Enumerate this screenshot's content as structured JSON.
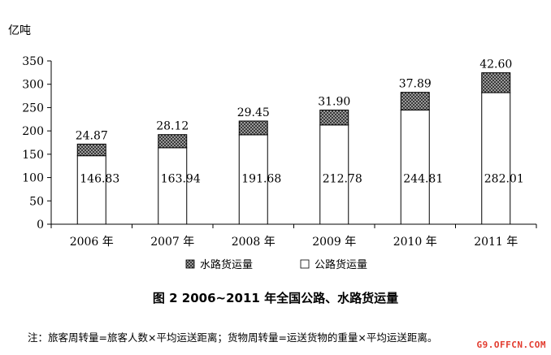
{
  "chart_data": {
    "type": "bar",
    "stacked": true,
    "ylabel": "亿吨",
    "ylim": [
      0,
      350
    ],
    "yticks": [
      0,
      50,
      100,
      150,
      200,
      250,
      300,
      350
    ],
    "grid": false,
    "legend_position": "bottom",
    "categories": [
      "2006 年",
      "2007 年",
      "2008 年",
      "2009 年",
      "2010 年",
      "2011 年"
    ],
    "series": [
      {
        "name": "公路货运量",
        "values": [
          146.83,
          163.94,
          191.68,
          212.78,
          244.81,
          282.01
        ],
        "fill": "white"
      },
      {
        "name": "水路货运量",
        "values": [
          24.87,
          28.12,
          29.45,
          31.9,
          37.89,
          42.6
        ],
        "fill": "crosshatch"
      }
    ],
    "legend": [
      "水路货运量",
      "公路货运量"
    ],
    "title": "图 2 2006~2011 年全国公路、水路货运量"
  },
  "note": "注：旅客周转量=旅客人数×平均运送距离；货物周转量=运送货物的重量×平均运送距离。",
  "watermark": "G9.OFFCN.COM",
  "colors": {
    "watermark": "#e23b2e",
    "bar_stroke": "#000000",
    "pattern": "#555555"
  }
}
